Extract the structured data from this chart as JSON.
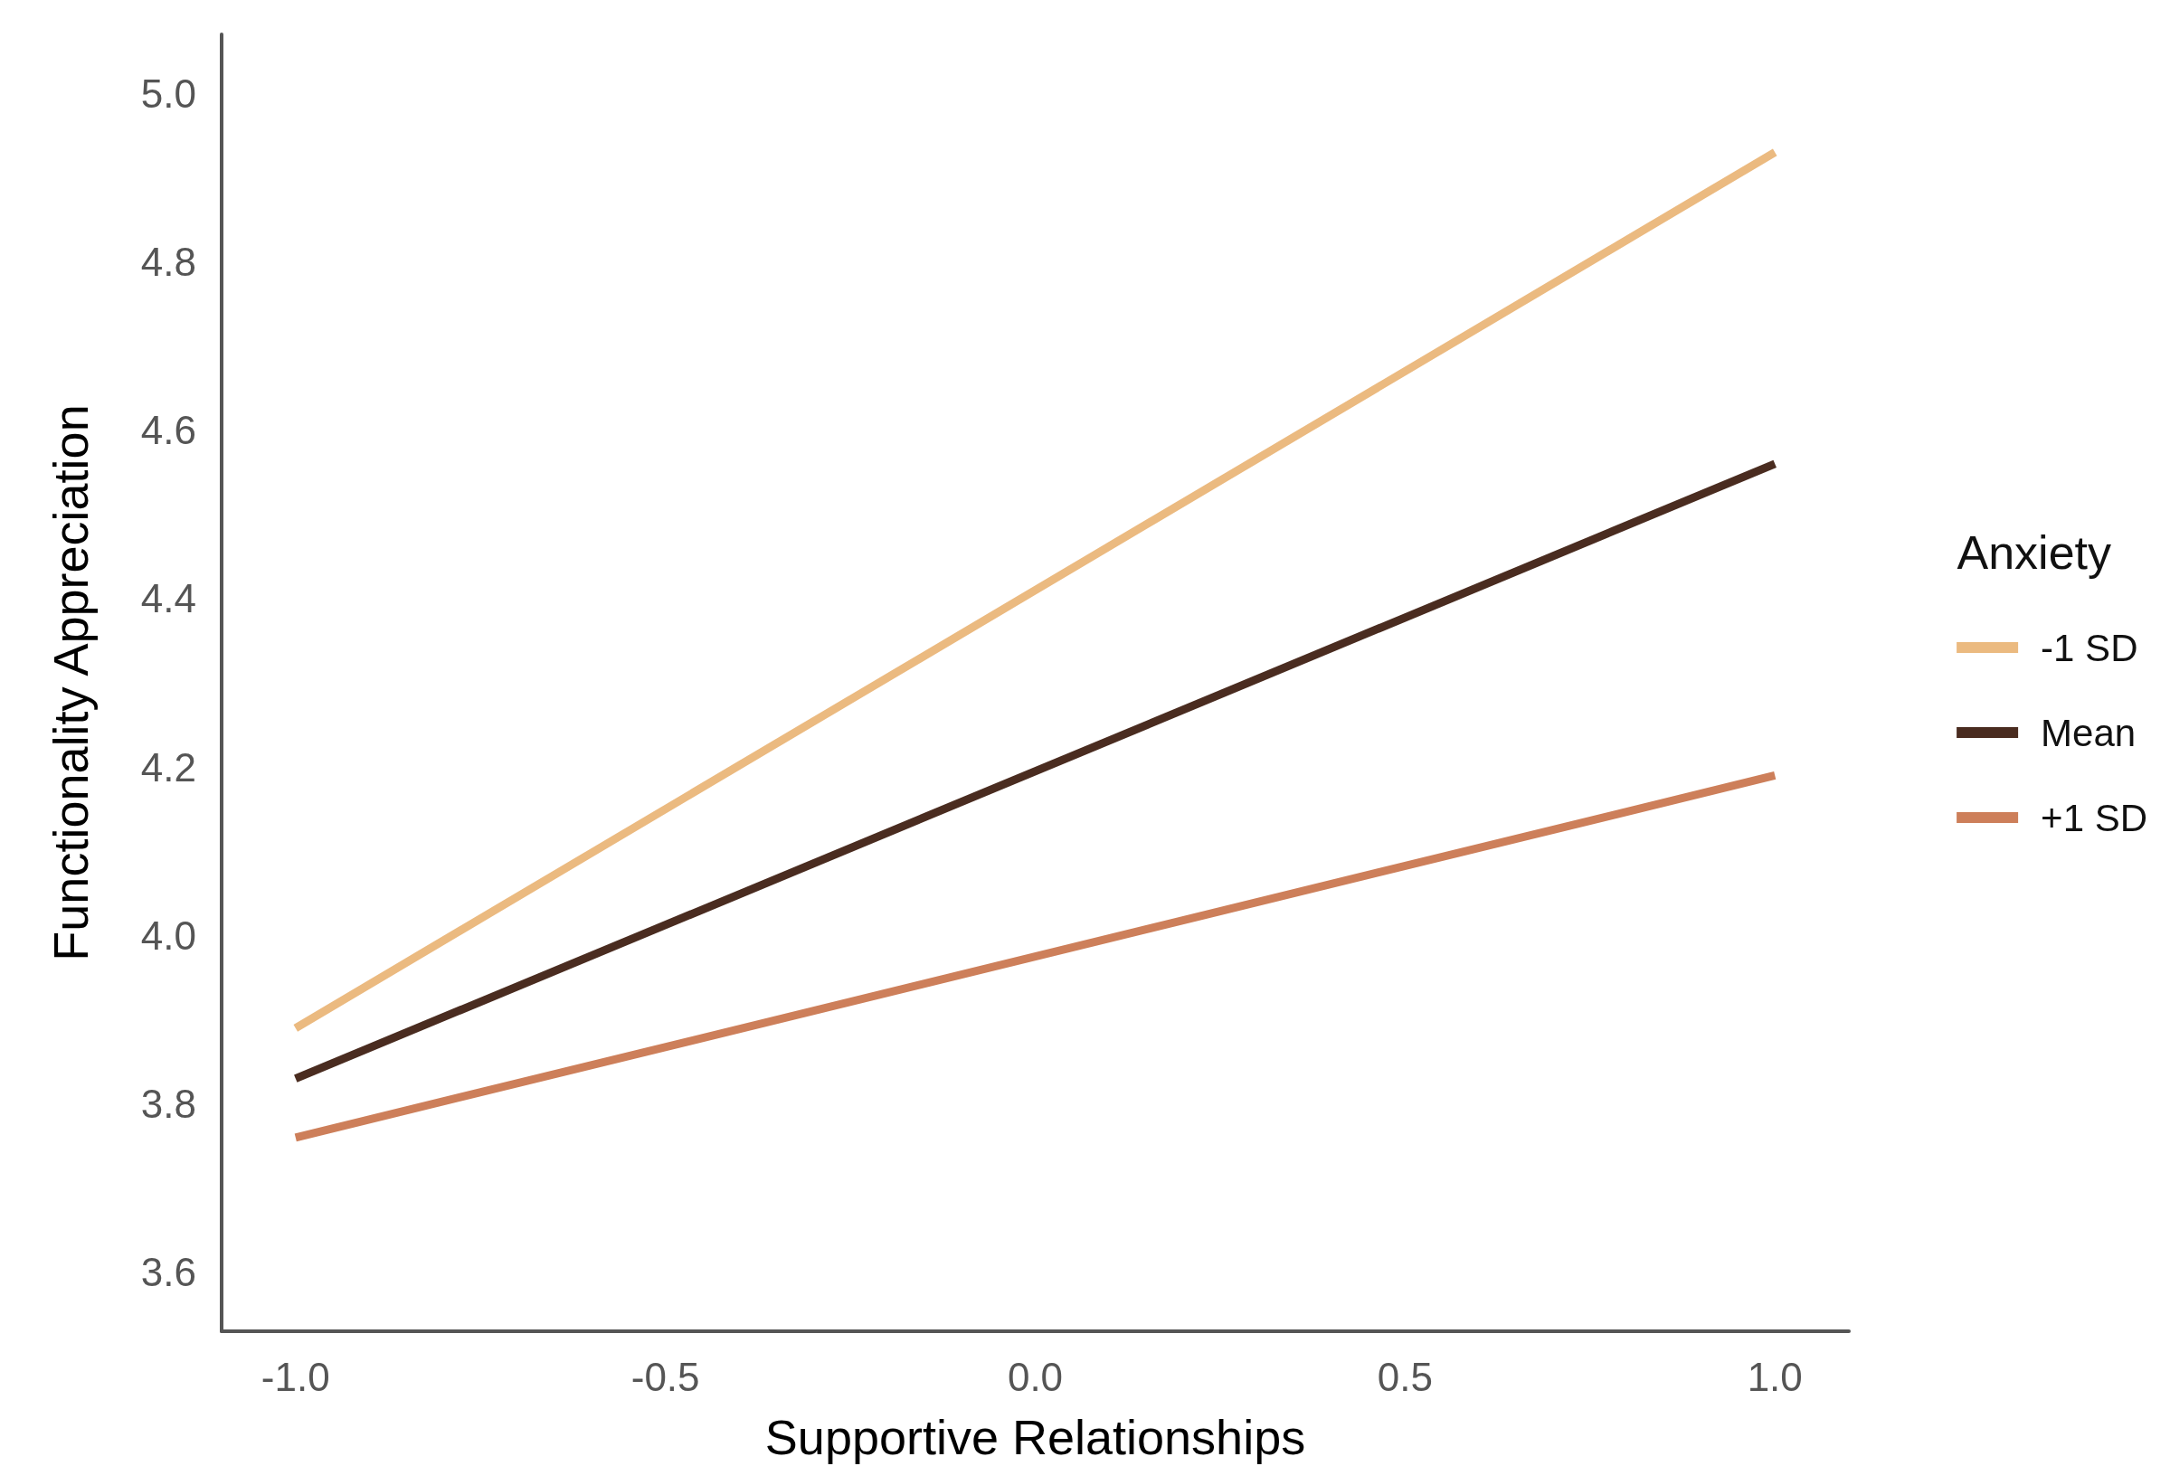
{
  "chart_data": {
    "type": "line",
    "xlabel": "Supportive Relationships",
    "ylabel": "Functionality Appreciation",
    "legend_title": "Anxiety",
    "x": [
      -1,
      1
    ],
    "series": [
      {
        "name": "-1 SD",
        "color": "#ebba80",
        "values": [
          3.89,
          4.93
        ]
      },
      {
        "name": "Mean",
        "color": "#4a2c20",
        "values": [
          3.83,
          4.56
        ]
      },
      {
        "name": "+1 SD",
        "color": "#cd7f5a",
        "values": [
          3.76,
          4.19
        ]
      }
    ],
    "xlim": [
      -1.1,
      1.1
    ],
    "xticks": [
      {
        "value": -1,
        "label": "-1.0"
      },
      -0.5,
      {
        "value": 0,
        "label": "0.0"
      },
      0.5,
      {
        "value": 1,
        "label": "1.0"
      }
    ],
    "ylim": [
      3.53,
      5.07
    ],
    "yticks": [
      3.6,
      3.8,
      {
        "value": 4,
        "label": "4.0"
      },
      4.2,
      4.4,
      4.6,
      4.8,
      {
        "value": 5,
        "label": "5.0"
      }
    ],
    "grid": false,
    "legend": "right",
    "marker": "none",
    "line_style": "solid"
  }
}
